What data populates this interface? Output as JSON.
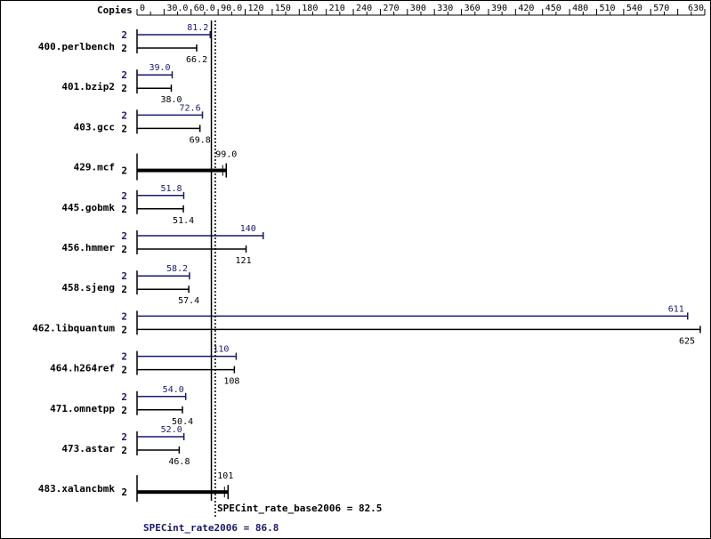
{
  "chart_data": {
    "type": "bar",
    "copies_label": "Copies",
    "x_ticks": [
      "0",
      "30.0",
      "60.0",
      "90.0",
      "120",
      "150",
      "180",
      "210",
      "240",
      "270",
      "300",
      "330",
      "360",
      "390",
      "420",
      "450",
      "480",
      "510",
      "540",
      "570",
      "630"
    ],
    "x_tick_values": [
      0,
      30,
      60,
      90,
      120,
      150,
      180,
      210,
      240,
      270,
      300,
      330,
      360,
      390,
      420,
      450,
      480,
      510,
      540,
      570,
      630
    ],
    "xlim": [
      0,
      630
    ],
    "colors": {
      "peak": "#191970",
      "base": "#000000"
    },
    "benchmarks": [
      {
        "name": "400.perlbench",
        "peak_copies": "2",
        "peak_label": "81.2",
        "peak": 81.2,
        "base_copies": "2",
        "base_label": "66.2",
        "base": 66.2
      },
      {
        "name": "401.bzip2",
        "peak_copies": "2",
        "peak_label": "39.0",
        "peak": 39.0,
        "base_copies": "2",
        "base_label": "38.0",
        "base": 38.0
      },
      {
        "name": "403.gcc",
        "peak_copies": "2",
        "peak_label": "72.6",
        "peak": 72.6,
        "base_copies": "2",
        "base_label": "69.8",
        "base": 69.8
      },
      {
        "name": "429.mcf",
        "single": true,
        "base_copies": "2",
        "base_label": "99.0",
        "base": 99.0
      },
      {
        "name": "445.gobmk",
        "peak_copies": "2",
        "peak_label": "51.8",
        "peak": 51.8,
        "base_copies": "2",
        "base_label": "51.4",
        "base": 51.4
      },
      {
        "name": "456.hmmer",
        "peak_copies": "2",
        "peak_label": "140",
        "peak": 140,
        "base_copies": "2",
        "base_label": "121",
        "base": 121
      },
      {
        "name": "458.sjeng",
        "peak_copies": "2",
        "peak_label": "58.2",
        "peak": 58.2,
        "base_copies": "2",
        "base_label": "57.4",
        "base": 57.4
      },
      {
        "name": "462.libquantum",
        "peak_copies": "2",
        "peak_label": "611",
        "peak": 611,
        "base_copies": "2",
        "base_label": "625",
        "base": 625
      },
      {
        "name": "464.h264ref",
        "peak_copies": "2",
        "peak_label": "110",
        "peak": 110,
        "base_copies": "2",
        "base_label": "108",
        "base": 108
      },
      {
        "name": "471.omnetpp",
        "peak_copies": "2",
        "peak_label": "54.0",
        "peak": 54.0,
        "base_copies": "2",
        "base_label": "50.4",
        "base": 50.4
      },
      {
        "name": "473.astar",
        "peak_copies": "2",
        "peak_label": "52.0",
        "peak": 52.0,
        "base_copies": "2",
        "base_label": "46.8",
        "base": 46.8
      },
      {
        "name": "483.xalancbmk",
        "single": true,
        "base_copies": "2",
        "base_label": "101",
        "base": 101
      }
    ],
    "base_summary": {
      "label": "SPECint_rate_base2006 = 82.5",
      "value": 82.5
    },
    "peak_summary": {
      "label": "SPECint_rate2006 = 86.8",
      "value": 86.8
    }
  }
}
